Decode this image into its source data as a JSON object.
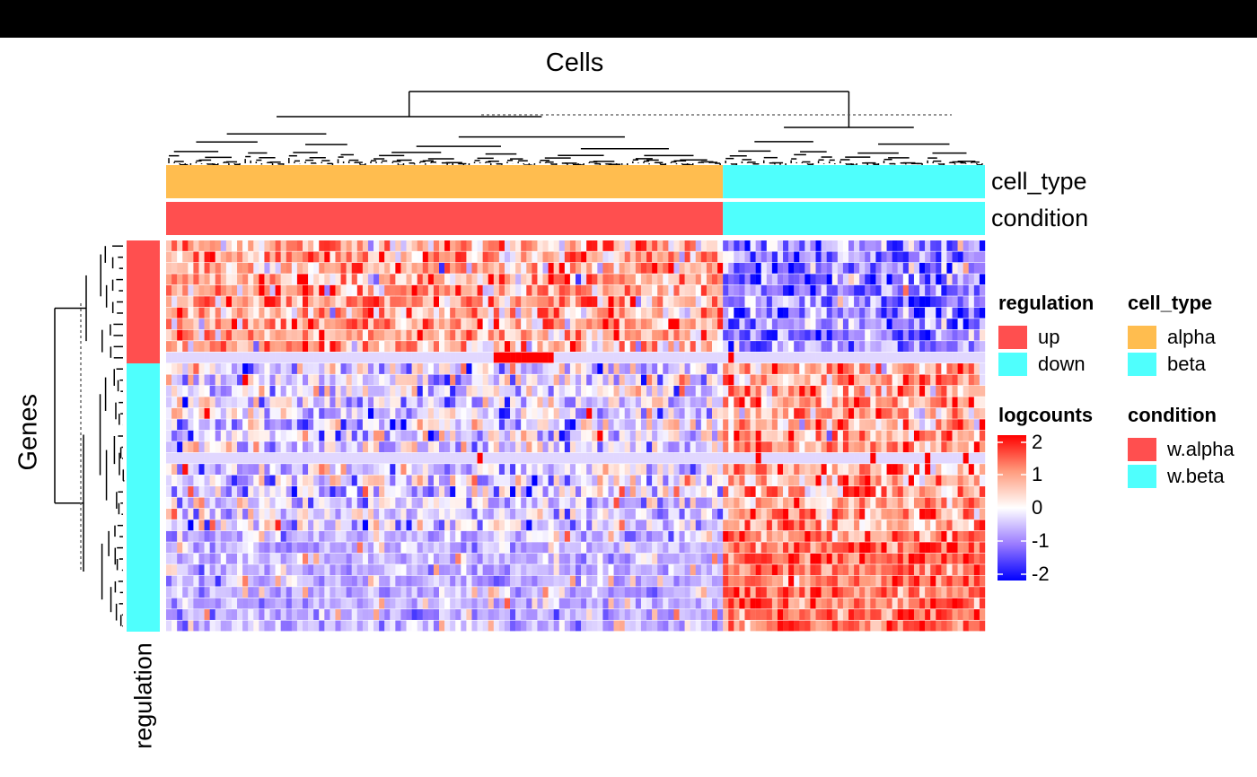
{
  "chart_data": {
    "type": "heatmap",
    "title": "",
    "column_title": "Cells",
    "row_title": "Genes",
    "n_rows": 35,
    "n_cols": 150,
    "column_groups": [
      {
        "cell_type": "alpha",
        "condition": "w.alpha",
        "n_cols": 102
      },
      {
        "cell_type": "beta",
        "condition": "w.beta",
        "n_cols": 48
      }
    ],
    "row_groups": [
      {
        "regulation": "up",
        "n_rows": 11
      },
      {
        "regulation": "down",
        "n_rows": 24
      }
    ],
    "value_pattern": {
      "up_genes": {
        "alpha_mean": 0.8,
        "beta_mean": -1.0
      },
      "down_genes": {
        "alpha_mean": -0.3,
        "beta_mean": 0.9
      },
      "near_constant_rows": [
        10,
        19
      ],
      "note": "row 10 is ~ -0.3 everywhere with a block of ~2 in cells ~60-70; row 19 ~ -0.3 with sparse high values in beta cells"
    },
    "color_scale": {
      "name": "logcounts",
      "breaks": [
        -2,
        -1,
        0,
        1,
        2
      ],
      "colors": [
        "#0000ff",
        "#9a7bff",
        "#ffffff",
        "#ff9c7e",
        "#ff0000"
      ]
    },
    "annotations": {
      "top": [
        {
          "name": "cell_type",
          "levels": [
            "alpha",
            "beta"
          ],
          "colors": [
            "#ffbd4f",
            "#4ffffd"
          ]
        },
        {
          "name": "condition",
          "levels": [
            "w.alpha",
            "w.beta"
          ],
          "colors": [
            "#ff4f4f",
            "#4ffffd"
          ]
        }
      ],
      "left": [
        {
          "name": "regulation",
          "levels": [
            "up",
            "down"
          ],
          "colors": [
            "#ff4f4f",
            "#4ffffd"
          ]
        }
      ]
    },
    "dendrograms": {
      "rows": true,
      "columns": true,
      "cut_lines": "dashed"
    }
  },
  "labels": {
    "column_title": "Cells",
    "row_title": "Genes",
    "annotation_cell_type": "cell_type",
    "annotation_condition": "condition",
    "annotation_regulation": "regulation"
  },
  "legends": {
    "regulation": {
      "title": "regulation",
      "items": [
        {
          "label": "up",
          "color": "#ff4f4f"
        },
        {
          "label": "down",
          "color": "#4ffffd"
        }
      ]
    },
    "cell_type": {
      "title": "cell_type",
      "items": [
        {
          "label": "alpha",
          "color": "#ffbd4f"
        },
        {
          "label": "beta",
          "color": "#4ffffd"
        }
      ]
    },
    "logcounts": {
      "title": "logcounts",
      "ticks": [
        "2",
        "1",
        "0",
        "-1",
        "-2"
      ]
    },
    "condition": {
      "title": "condition",
      "items": [
        {
          "label": "w.alpha",
          "color": "#ff4f4f"
        },
        {
          "label": "w.beta",
          "color": "#4ffffd"
        }
      ]
    }
  }
}
